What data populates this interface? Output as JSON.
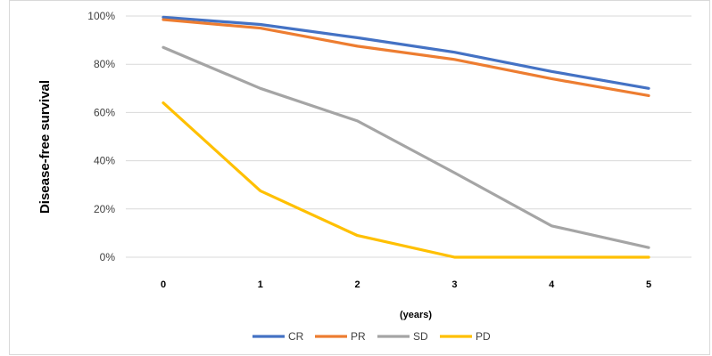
{
  "chart_data": {
    "type": "line",
    "title": "",
    "xlabel": "(years)",
    "ylabel": "Disease-free survival",
    "x": [
      0,
      1,
      2,
      3,
      4,
      5
    ],
    "yticks": [
      "0%",
      "20%",
      "40%",
      "60%",
      "80%",
      "100%"
    ],
    "ylim": [
      0,
      100
    ],
    "grid": true,
    "legend_position": "bottom",
    "series": [
      {
        "name": "CR",
        "color": "#4472C4",
        "values": [
          99.5,
          96.5,
          91,
          85,
          77,
          70
        ]
      },
      {
        "name": "PR",
        "color": "#ED7D31",
        "values": [
          98.5,
          95,
          87.5,
          82,
          74,
          67
        ]
      },
      {
        "name": "SD",
        "color": "#A5A5A5",
        "values": [
          87,
          70,
          56.5,
          35,
          13,
          4
        ]
      },
      {
        "name": "PD",
        "color": "#FFC000",
        "values": [
          64,
          27.5,
          9,
          0,
          0,
          0
        ]
      }
    ]
  }
}
